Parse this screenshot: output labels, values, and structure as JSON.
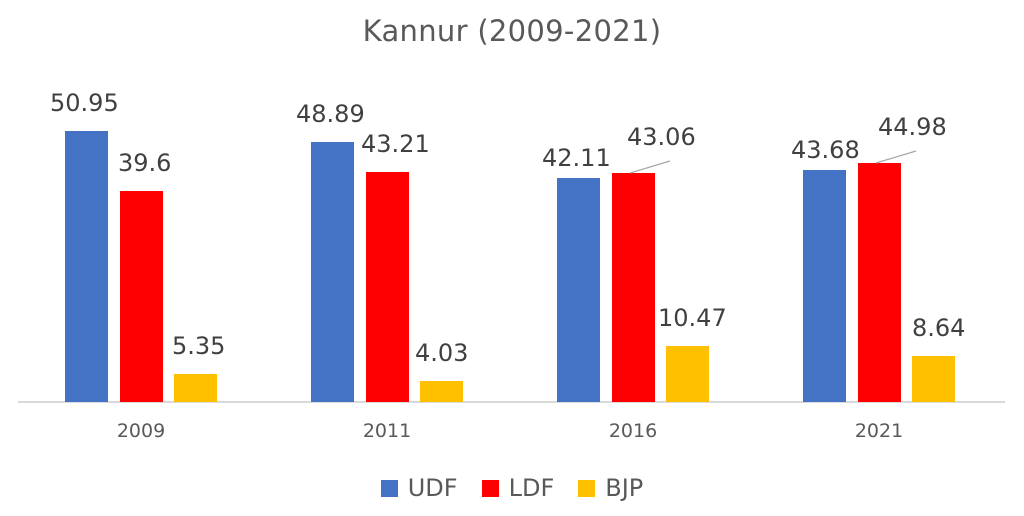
{
  "title": "Kannur (2009-2021)",
  "legend": [
    {
      "label": "UDF",
      "color": "#4472C4"
    },
    {
      "label": "LDF",
      "color": "#FF0000"
    },
    {
      "label": "BJP",
      "color": "#FFC000"
    }
  ],
  "categories": [
    "2009",
    "2011",
    "2016",
    "2021"
  ],
  "value_labels": {
    "udf": [
      "50.95",
      "48.89",
      "42.11",
      "43.68"
    ],
    "ldf": [
      "39.6",
      "43.21",
      "43.06",
      "44.98"
    ],
    "bjp": [
      "5.35",
      "4.03",
      "10.47",
      "8.64"
    ]
  },
  "chart_data": {
    "type": "bar",
    "title": "Kannur (2009-2021)",
    "xlabel": "",
    "ylabel": "",
    "categories": [
      "2009",
      "2011",
      "2016",
      "2021"
    ],
    "series": [
      {
        "name": "UDF",
        "color": "#4472C4",
        "values": [
          50.95,
          48.89,
          42.11,
          43.68
        ]
      },
      {
        "name": "LDF",
        "color": "#FF0000",
        "values": [
          39.6,
          43.21,
          43.06,
          44.98
        ]
      },
      {
        "name": "BJP",
        "color": "#FFC000",
        "values": [
          5.35,
          4.03,
          10.47,
          8.64
        ]
      }
    ],
    "ylim": [
      0,
      55
    ],
    "grid": false,
    "y_axis_visible": false,
    "data_labels": true,
    "legend_position": "bottom"
  }
}
